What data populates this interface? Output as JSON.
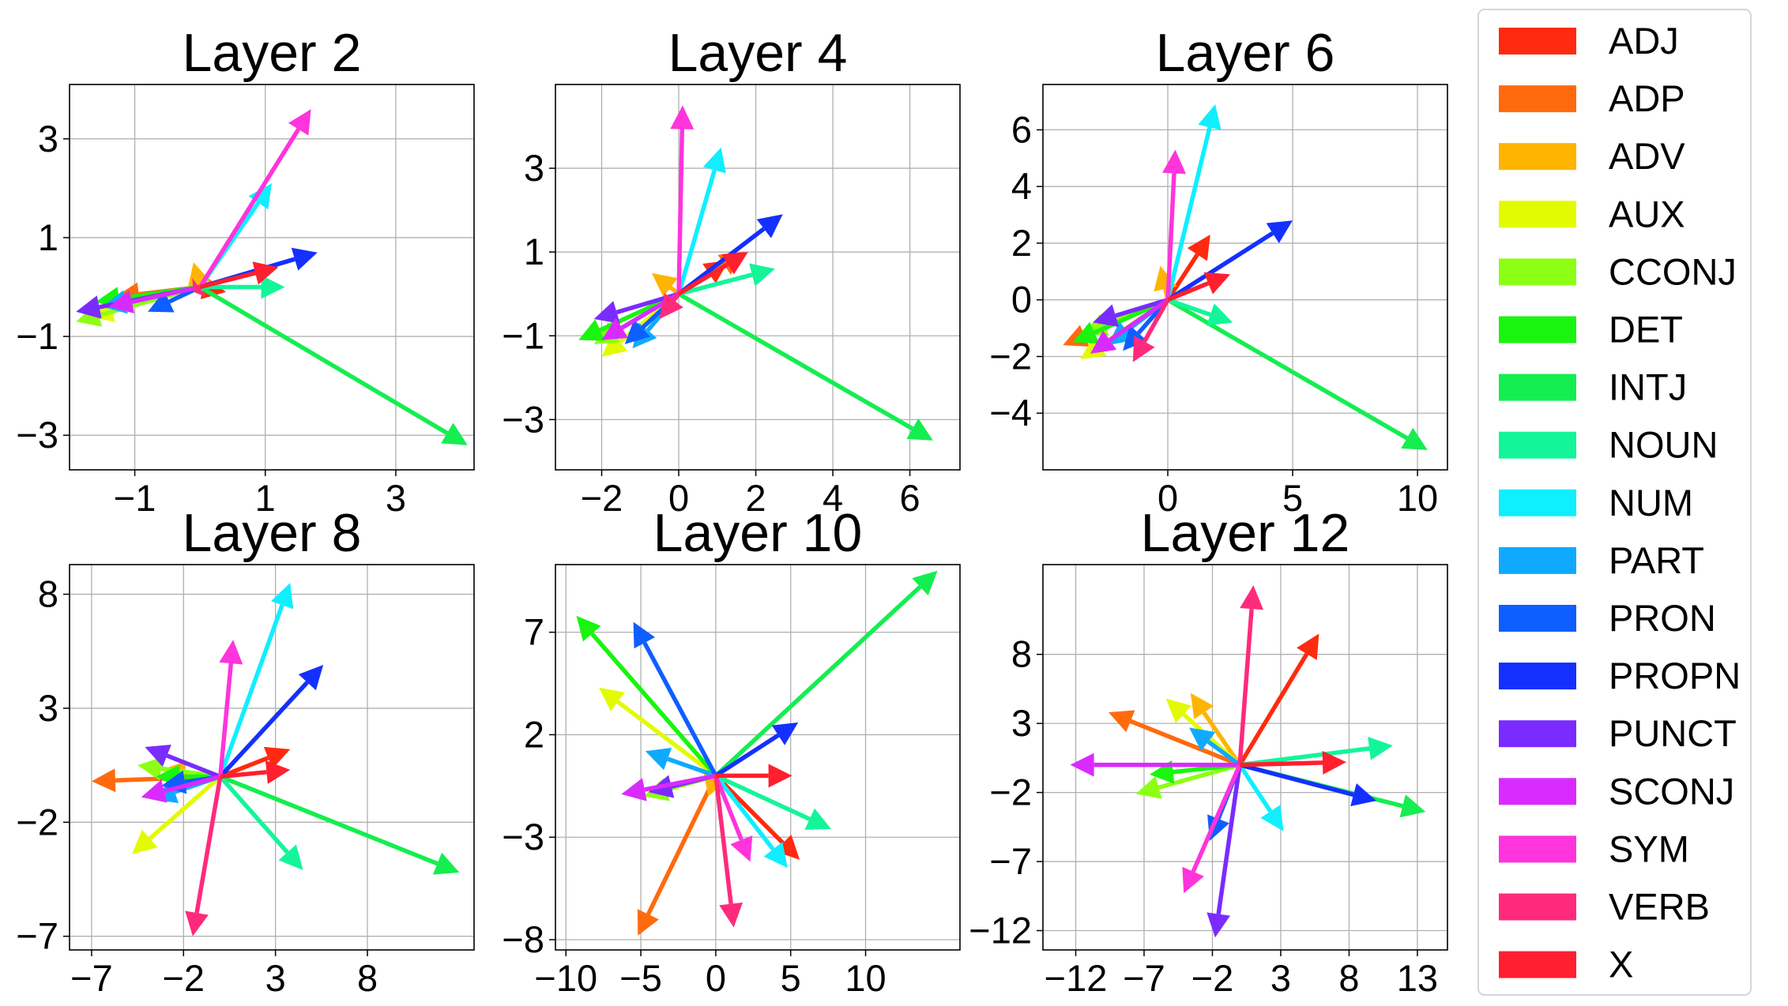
{
  "chart_data": [
    {
      "type": "vector",
      "title": "Layer 2",
      "xlabel": "",
      "ylabel": "",
      "xlim": [
        -2.0,
        4.2
      ],
      "ylim": [
        -3.7,
        4.1
      ],
      "xticks": [
        -1,
        1,
        3
      ],
      "yticks": [
        -3,
        -1,
        1,
        3
      ],
      "xtick_labels": [
        "−1",
        "1",
        "3"
      ],
      "ytick_labels": [
        "−3",
        "−1",
        "1",
        "3"
      ],
      "grid": true,
      "vectors": [
        {
          "name": "ADJ",
          "x": 0.4,
          "y": -0.1
        },
        {
          "name": "ADP",
          "x": -1.3,
          "y": -0.2
        },
        {
          "name": "ADV",
          "x": -0.1,
          "y": 0.5
        },
        {
          "name": "AUX",
          "x": -1.7,
          "y": -0.6
        },
        {
          "name": "CCONJ",
          "x": -1.9,
          "y": -0.7
        },
        {
          "name": "DET",
          "x": -1.6,
          "y": -0.3
        },
        {
          "name": "INTJ",
          "x": 4.1,
          "y": -3.2
        },
        {
          "name": "NOUN",
          "x": 1.3,
          "y": 0.0
        },
        {
          "name": "NUM",
          "x": 1.1,
          "y": 2.1
        },
        {
          "name": "PART",
          "x": -1.5,
          "y": -0.4
        },
        {
          "name": "PRON",
          "x": -0.8,
          "y": -0.5
        },
        {
          "name": "PROPN",
          "x": 1.8,
          "y": 0.7
        },
        {
          "name": "PUNCT",
          "x": -1.9,
          "y": -0.5
        },
        {
          "name": "SCONJ",
          "x": -1.4,
          "y": -0.4
        },
        {
          "name": "SYM",
          "x": 1.7,
          "y": 3.6
        },
        {
          "name": "VERB",
          "x": -0.1,
          "y": -0.1
        },
        {
          "name": "X",
          "x": 1.2,
          "y": 0.4
        }
      ]
    },
    {
      "type": "vector",
      "title": "Layer 4",
      "xlabel": "",
      "ylabel": "",
      "xlim": [
        -3.2,
        7.3
      ],
      "ylim": [
        -4.2,
        5.0
      ],
      "xticks": [
        -2,
        0,
        2,
        4,
        6
      ],
      "yticks": [
        -3,
        -1,
        1,
        3
      ],
      "xtick_labels": [
        "−2",
        "0",
        "2",
        "4",
        "6"
      ],
      "ytick_labels": [
        "−3",
        "−1",
        "1",
        "3"
      ],
      "grid": true,
      "vectors": [
        {
          "name": "ADJ",
          "x": 1.3,
          "y": 0.8
        },
        {
          "name": "ADP",
          "x": 1.7,
          "y": 1.0
        },
        {
          "name": "ADV",
          "x": -0.7,
          "y": 0.5
        },
        {
          "name": "AUX",
          "x": -2.0,
          "y": -1.5
        },
        {
          "name": "CCONJ",
          "x": -2.2,
          "y": -1.2
        },
        {
          "name": "DET",
          "x": -2.6,
          "y": -1.1
        },
        {
          "name": "INTJ",
          "x": 6.6,
          "y": -3.5
        },
        {
          "name": "NOUN",
          "x": 2.5,
          "y": 0.6
        },
        {
          "name": "NUM",
          "x": 1.1,
          "y": 3.5
        },
        {
          "name": "PART",
          "x": -1.2,
          "y": -1.3
        },
        {
          "name": "PRON",
          "x": -1.4,
          "y": -1.2
        },
        {
          "name": "PROPN",
          "x": 2.7,
          "y": 1.9
        },
        {
          "name": "PUNCT",
          "x": -2.2,
          "y": -0.6
        },
        {
          "name": "SCONJ",
          "x": -2.0,
          "y": -1.1
        },
        {
          "name": "SYM",
          "x": 0.1,
          "y": 4.5
        },
        {
          "name": "VERB",
          "x": -0.5,
          "y": -0.6
        },
        {
          "name": "X",
          "x": 1.8,
          "y": 1.0
        }
      ]
    },
    {
      "type": "vector",
      "title": "Layer 6",
      "xlabel": "",
      "ylabel": "",
      "xlim": [
        -5.0,
        11.2
      ],
      "ylim": [
        -6.0,
        7.6
      ],
      "xticks": [
        0,
        5,
        10
      ],
      "yticks": [
        -4,
        -2,
        0,
        2,
        4,
        6
      ],
      "xtick_labels": [
        "0",
        "5",
        "10"
      ],
      "ytick_labels": [
        "−4",
        "−2",
        "0",
        "2",
        "4",
        "6"
      ],
      "grid": true,
      "vectors": [
        {
          "name": "ADJ",
          "x": 1.7,
          "y": 2.3
        },
        {
          "name": "ADP",
          "x": -4.2,
          "y": -1.6
        },
        {
          "name": "ADV",
          "x": -0.3,
          "y": 1.2
        },
        {
          "name": "AUX",
          "x": -3.5,
          "y": -2.1
        },
        {
          "name": "CCONJ",
          "x": -3.4,
          "y": -1.2
        },
        {
          "name": "DET",
          "x": -3.8,
          "y": -1.5
        },
        {
          "name": "INTJ",
          "x": 10.4,
          "y": -5.3
        },
        {
          "name": "NOUN",
          "x": 2.6,
          "y": -0.8
        },
        {
          "name": "NUM",
          "x": 1.9,
          "y": 6.9
        },
        {
          "name": "PART",
          "x": -2.4,
          "y": -1.6
        },
        {
          "name": "PRON",
          "x": -1.8,
          "y": -1.8
        },
        {
          "name": "PROPN",
          "x": 5.0,
          "y": 2.8
        },
        {
          "name": "PUNCT",
          "x": -3.0,
          "y": -0.8
        },
        {
          "name": "SCONJ",
          "x": -3.1,
          "y": -1.9
        },
        {
          "name": "SYM",
          "x": 0.3,
          "y": 5.3
        },
        {
          "name": "VERB",
          "x": -1.4,
          "y": -2.2
        },
        {
          "name": "X",
          "x": 2.5,
          "y": 0.9
        }
      ]
    },
    {
      "type": "vector",
      "title": "Layer 8",
      "xlabel": "",
      "ylabel": "",
      "xlim": [
        -8.2,
        13.8
      ],
      "ylim": [
        -7.6,
        9.3
      ],
      "xticks": [
        -7,
        -2,
        3,
        8
      ],
      "yticks": [
        -7,
        -2,
        3,
        8
      ],
      "xtick_labels": [
        "−7",
        "−2",
        "3",
        "8"
      ],
      "ytick_labels": [
        "−7",
        "−2",
        "3",
        "8"
      ],
      "grid": true,
      "vectors": [
        {
          "name": "ADJ",
          "x": 3.8,
          "y": 1.2
        },
        {
          "name": "ADP",
          "x": -7.0,
          "y": -0.2
        },
        {
          "name": "ADV",
          "x": -3.2,
          "y": 0.3
        },
        {
          "name": "AUX",
          "x": -4.8,
          "y": -3.4
        },
        {
          "name": "CCONJ",
          "x": -4.5,
          "y": 0.5
        },
        {
          "name": "DET",
          "x": -3.5,
          "y": 0.0
        },
        {
          "name": "INTJ",
          "x": 13.0,
          "y": -4.2
        },
        {
          "name": "NOUN",
          "x": 4.5,
          "y": -4.1
        },
        {
          "name": "NUM",
          "x": 3.8,
          "y": 8.5
        },
        {
          "name": "PART",
          "x": -3.7,
          "y": -1.0
        },
        {
          "name": "PRON",
          "x": -3.2,
          "y": -0.4
        },
        {
          "name": "PROPN",
          "x": 5.6,
          "y": 4.9
        },
        {
          "name": "PUNCT",
          "x": -4.1,
          "y": 1.3
        },
        {
          "name": "SCONJ",
          "x": -4.3,
          "y": -0.9
        },
        {
          "name": "SYM",
          "x": 0.7,
          "y": 6.0
        },
        {
          "name": "VERB",
          "x": -1.5,
          "y": -7.0
        },
        {
          "name": "X",
          "x": 3.8,
          "y": 0.3
        }
      ]
    },
    {
      "type": "vector",
      "title": "Layer 10",
      "xlabel": "",
      "ylabel": "",
      "xlim": [
        -10.7,
        16.3
      ],
      "ylim": [
        -8.5,
        10.3
      ],
      "xticks": [
        -10,
        -5,
        0,
        5,
        10
      ],
      "yticks": [
        -8,
        -3,
        2,
        7
      ],
      "xtick_labels": [
        "−10",
        "−5",
        "0",
        "5",
        "10"
      ],
      "ytick_labels": [
        "−8",
        "−3",
        "2",
        "7"
      ],
      "grid": true,
      "vectors": [
        {
          "name": "ADJ",
          "x": 5.6,
          "y": -4.1
        },
        {
          "name": "ADP",
          "x": -5.2,
          "y": -7.8
        },
        {
          "name": "ADV",
          "x": -0.5,
          "y": -1.0
        },
        {
          "name": "AUX",
          "x": -7.8,
          "y": 4.3
        },
        {
          "name": "CCONJ",
          "x": -4.8,
          "y": -1.0
        },
        {
          "name": "DET",
          "x": -9.3,
          "y": 7.8
        },
        {
          "name": "INTJ",
          "x": 14.8,
          "y": 10.0
        },
        {
          "name": "NOUN",
          "x": 7.7,
          "y": -2.6
        },
        {
          "name": "NUM",
          "x": 4.8,
          "y": -4.5
        },
        {
          "name": "PART",
          "x": -4.7,
          "y": 1.2
        },
        {
          "name": "PRON",
          "x": -5.5,
          "y": 7.5
        },
        {
          "name": "PROPN",
          "x": 5.5,
          "y": 2.6
        },
        {
          "name": "PUNCT",
          "x": -4.5,
          "y": -0.8
        },
        {
          "name": "SCONJ",
          "x": -6.3,
          "y": -0.9
        },
        {
          "name": "SYM",
          "x": 2.3,
          "y": -4.2
        },
        {
          "name": "VERB",
          "x": 1.2,
          "y": -7.4
        },
        {
          "name": "X",
          "x": 5.1,
          "y": 0.0
        }
      ]
    },
    {
      "type": "vector",
      "title": "Layer 12",
      "xlabel": "",
      "ylabel": "",
      "xlim": [
        -14.4,
        15.2
      ],
      "ylim": [
        -13.4,
        14.5
      ],
      "xticks": [
        -12,
        -7,
        -2,
        3,
        8,
        13
      ],
      "yticks": [
        -12,
        -7,
        -2,
        3,
        8
      ],
      "xtick_labels": [
        "−12",
        "−7",
        "−2",
        "3",
        "8",
        "13"
      ],
      "ytick_labels": [
        "−12",
        "−7",
        "−2",
        "3",
        "8"
      ],
      "grid": true,
      "vectors": [
        {
          "name": "ADJ",
          "x": 5.8,
          "y": 9.5
        },
        {
          "name": "ADP",
          "x": -9.6,
          "y": 3.8
        },
        {
          "name": "ADV",
          "x": -3.6,
          "y": 5.2
        },
        {
          "name": "AUX",
          "x": -5.4,
          "y": 4.8
        },
        {
          "name": "CCONJ",
          "x": -7.6,
          "y": -2.1
        },
        {
          "name": "DET",
          "x": -6.6,
          "y": -0.7
        },
        {
          "name": "INTJ",
          "x": 13.6,
          "y": -3.4
        },
        {
          "name": "NOUN",
          "x": 11.2,
          "y": 1.4
        },
        {
          "name": "NUM",
          "x": 3.2,
          "y": -4.8
        },
        {
          "name": "PART",
          "x": -3.7,
          "y": 2.7
        },
        {
          "name": "PRON",
          "x": -2.2,
          "y": -5.5
        },
        {
          "name": "PROPN",
          "x": 10.0,
          "y": -2.6
        },
        {
          "name": "PUNCT",
          "x": -1.8,
          "y": -12.5
        },
        {
          "name": "SCONJ",
          "x": -12.4,
          "y": 0.0
        },
        {
          "name": "SYM",
          "x": -4.1,
          "y": -9.3
        },
        {
          "name": "VERB",
          "x": 1.0,
          "y": 13.0
        },
        {
          "name": "X",
          "x": 7.8,
          "y": 0.2
        }
      ]
    }
  ],
  "legend": {
    "placement": "right",
    "entries": [
      {
        "label": "ADJ",
        "color": "#ff2a0f"
      },
      {
        "label": "ADP",
        "color": "#ff6a0f"
      },
      {
        "label": "ADV",
        "color": "#ffb400"
      },
      {
        "label": "AUX",
        "color": "#e3fb00"
      },
      {
        "label": "CCONJ",
        "color": "#8cff14"
      },
      {
        "label": "DET",
        "color": "#19f50f"
      },
      {
        "label": "INTJ",
        "color": "#14ee50"
      },
      {
        "label": "NOUN",
        "color": "#14f59a"
      },
      {
        "label": "NUM",
        "color": "#0fefff"
      },
      {
        "label": "PART",
        "color": "#0faaff"
      },
      {
        "label": "PRON",
        "color": "#0f5eff"
      },
      {
        "label": "PROPN",
        "color": "#1430ff"
      },
      {
        "label": "PUNCT",
        "color": "#7a2bff"
      },
      {
        "label": "SCONJ",
        "color": "#d92bff"
      },
      {
        "label": "SYM",
        "color": "#ff34dc"
      },
      {
        "label": "VERB",
        "color": "#ff2a7c"
      },
      {
        "label": "X",
        "color": "#ff1f2f"
      }
    ]
  }
}
